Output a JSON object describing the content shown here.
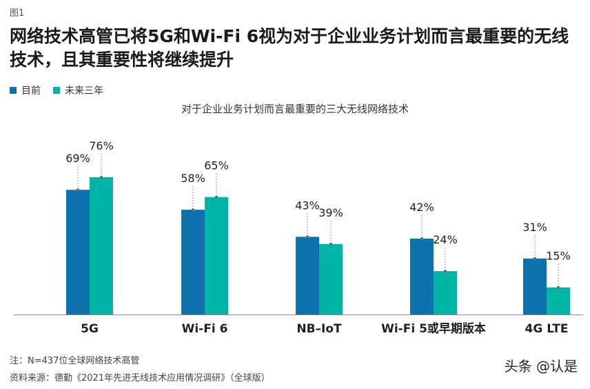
{
  "figure_label": "图1",
  "title": "网络技术高管已将5G和Wi-Fi 6视为对于企业业务计划而言最重要的无线技术，且其重要性将继续提升",
  "legend": [
    {
      "label": "目前",
      "color": "#0e73ad"
    },
    {
      "label": "未来三年",
      "color": "#00b4a6"
    }
  ],
  "chart_data": {
    "type": "bar",
    "title": "对于企业业务计划而言最重要的三大无线网络技术",
    "categories": [
      "5G",
      "Wi-Fi 6",
      "NB–IoT",
      "Wi-Fi 5或早期版本",
      "4G LTE"
    ],
    "series": [
      {
        "name": "目前",
        "values": [
          69,
          58,
          43,
          42,
          31
        ],
        "labels": [
          "69%",
          "58%",
          "43%",
          "42%",
          "31%"
        ],
        "color": "#0e73ad"
      },
      {
        "name": "未来三年",
        "values": [
          76,
          65,
          39,
          24,
          15
        ],
        "labels": [
          "76%",
          "65%",
          "39%",
          "24%",
          "15%"
        ],
        "color": "#00b4a6"
      }
    ],
    "xlabel": "",
    "ylabel": "",
    "ylim": [
      0,
      100
    ],
    "unit": "%",
    "grid": false,
    "legend_position": "top-left"
  },
  "notes": {
    "sample": "注：N=437位全球网络技术高管",
    "source": "资料来源：德勤《2021年先进无线技术应用情况调研》（全球版）"
  },
  "watermark": "头条 @认是"
}
